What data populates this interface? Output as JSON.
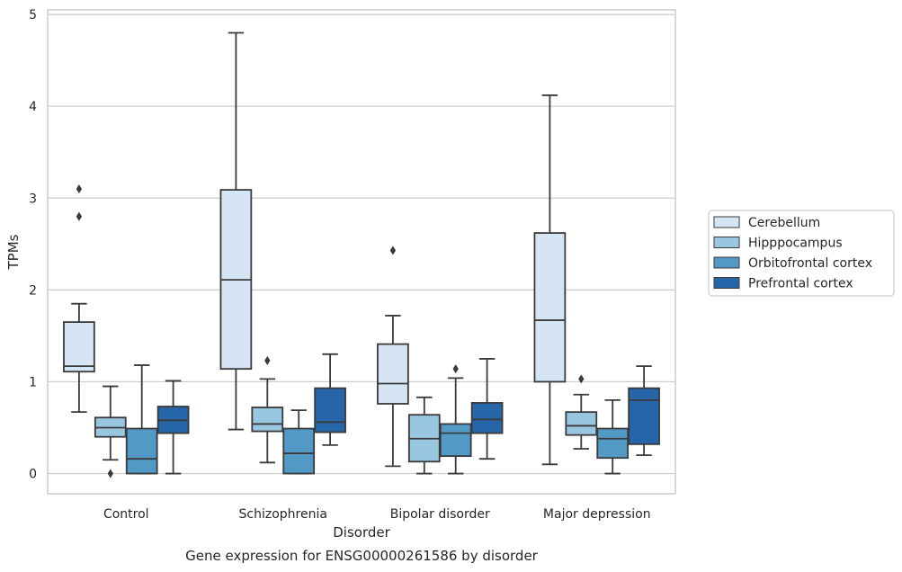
{
  "caption": "Gene expression for ENSG00000261586 by disorder",
  "chart_data": {
    "type": "box",
    "title": "",
    "xlabel": "Disorder",
    "ylabel": "TPMs",
    "ylim": [
      -0.22,
      5.05
    ],
    "yticks": [
      0,
      1,
      2,
      3,
      4,
      5
    ],
    "grid": "horizontal",
    "legend_position": "right",
    "categories": [
      "Control",
      "Schizophrenia",
      "Bipolar disorder",
      "Major depression"
    ],
    "series": [
      {
        "name": "Cerebellum",
        "color": "#d6e5f4",
        "boxes": [
          {
            "whisker_low": 0.67,
            "q1": 1.11,
            "median": 1.17,
            "q3": 1.65,
            "whisker_high": 1.85,
            "outliers": [
              2.8,
              3.1
            ]
          },
          {
            "whisker_low": 0.48,
            "q1": 1.14,
            "median": 2.11,
            "q3": 3.09,
            "whisker_high": 4.8,
            "outliers": []
          },
          {
            "whisker_low": 0.08,
            "q1": 0.76,
            "median": 0.98,
            "q3": 1.41,
            "whisker_high": 1.72,
            "outliers": [
              2.43
            ]
          },
          {
            "whisker_low": 0.1,
            "q1": 1.0,
            "median": 1.67,
            "q3": 2.62,
            "whisker_high": 4.12,
            "outliers": []
          }
        ]
      },
      {
        "name": "Hipppocampus",
        "color": "#9ac7e0",
        "boxes": [
          {
            "whisker_low": 0.15,
            "q1": 0.4,
            "median": 0.5,
            "q3": 0.61,
            "whisker_high": 0.95,
            "outliers": [
              0.0
            ]
          },
          {
            "whisker_low": 0.12,
            "q1": 0.46,
            "median": 0.54,
            "q3": 0.72,
            "whisker_high": 1.03,
            "outliers": [
              1.23
            ]
          },
          {
            "whisker_low": 0.0,
            "q1": 0.13,
            "median": 0.38,
            "q3": 0.64,
            "whisker_high": 0.83,
            "outliers": []
          },
          {
            "whisker_low": 0.27,
            "q1": 0.42,
            "median": 0.52,
            "q3": 0.67,
            "whisker_high": 0.86,
            "outliers": [
              1.03
            ]
          }
        ]
      },
      {
        "name": "Orbitofrontal cortex",
        "color": "#5399c6",
        "boxes": [
          {
            "whisker_low": 0.0,
            "q1": 0.0,
            "median": 0.16,
            "q3": 0.49,
            "whisker_high": 1.18,
            "outliers": []
          },
          {
            "whisker_low": 0.0,
            "q1": 0.0,
            "median": 0.22,
            "q3": 0.49,
            "whisker_high": 0.69,
            "outliers": []
          },
          {
            "whisker_low": 0.0,
            "q1": 0.19,
            "median": 0.44,
            "q3": 0.54,
            "whisker_high": 1.04,
            "outliers": [
              1.14
            ]
          },
          {
            "whisker_low": 0.0,
            "q1": 0.17,
            "median": 0.38,
            "q3": 0.49,
            "whisker_high": 0.8,
            "outliers": []
          }
        ]
      },
      {
        "name": "Prefrontal cortex",
        "color": "#2565a8",
        "boxes": [
          {
            "whisker_low": 0.0,
            "q1": 0.44,
            "median": 0.58,
            "q3": 0.73,
            "whisker_high": 1.01,
            "outliers": []
          },
          {
            "whisker_low": 0.31,
            "q1": 0.45,
            "median": 0.56,
            "q3": 0.93,
            "whisker_high": 1.3,
            "outliers": []
          },
          {
            "whisker_low": 0.16,
            "q1": 0.44,
            "median": 0.59,
            "q3": 0.77,
            "whisker_high": 1.25,
            "outliers": []
          },
          {
            "whisker_low": 0.2,
            "q1": 0.32,
            "median": 0.8,
            "q3": 0.93,
            "whisker_high": 1.17,
            "outliers": []
          }
        ]
      }
    ]
  }
}
